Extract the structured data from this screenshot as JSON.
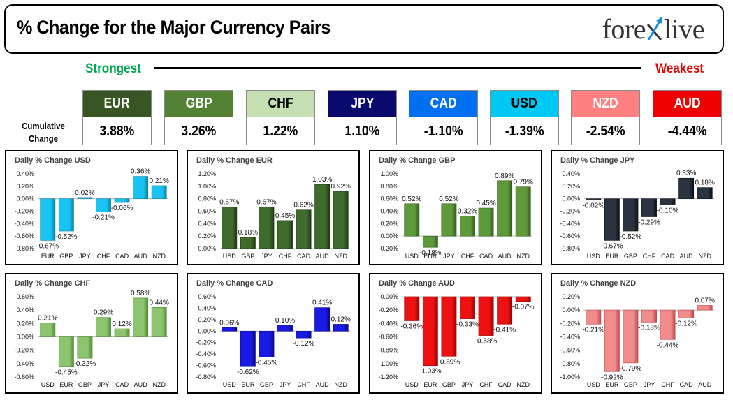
{
  "header": {
    "title": "% Change for the Major Currency Pairs",
    "logo_text_left": "fore",
    "logo_text_right": "live"
  },
  "ranking": {
    "strongest_label": "Strongest",
    "weakest_label": "Weakest",
    "cumulative_label_line1": "Cumulative",
    "cumulative_label_line2": "Change"
  },
  "currencies": [
    {
      "code": "EUR",
      "value": "3.88%",
      "color": "#375623",
      "text_color": "#ffffff"
    },
    {
      "code": "GBP",
      "value": "3.26%",
      "color": "#548235",
      "text_color": "#ffffff"
    },
    {
      "code": "CHF",
      "value": "1.22%",
      "color": "#c6e0b4",
      "text_color": "#000000"
    },
    {
      "code": "JPY",
      "value": "1.10%",
      "color": "#0a0a6e",
      "text_color": "#ffffff"
    },
    {
      "code": "CAD",
      "value": "-1.10%",
      "color": "#0070f0",
      "text_color": "#ffffff"
    },
    {
      "code": "USD",
      "value": "-1.39%",
      "color": "#00c8f5",
      "text_color": "#000000"
    },
    {
      "code": "NZD",
      "value": "-2.54%",
      "color": "#ff8080",
      "text_color": "#ffffff"
    },
    {
      "code": "AUD",
      "value": "-4.44%",
      "color": "#ee0000",
      "text_color": "#ffffff"
    }
  ],
  "chart_data": [
    {
      "type": "bar",
      "title": "Daily % Change USD",
      "categories": [
        "EUR",
        "GBP",
        "JPY",
        "CHF",
        "CAD",
        "AUD",
        "NZD"
      ],
      "values": [
        -0.67,
        -0.52,
        0.02,
        -0.21,
        -0.06,
        0.36,
        0.21
      ],
      "labels": [
        "-0.67%",
        "-0.52%",
        "0.02%",
        "-0.21%",
        "-0.06%",
        "0.36%",
        "0.21%"
      ],
      "ylim": [
        -0.8,
        0.4
      ],
      "yticks": [
        0.4,
        0.2,
        0.0,
        -0.2,
        -0.4,
        -0.6,
        -0.8
      ],
      "ytick_labels": [
        "0.40%",
        "0.20%",
        "0.00%",
        "-0.20%",
        "-0.40%",
        "-0.60%",
        "-0.80%"
      ],
      "color": "#19c3f3",
      "color_dark": "#0e7fa0"
    },
    {
      "type": "bar",
      "title": "Daily % Change EUR",
      "categories": [
        "USD",
        "GBP",
        "JPY",
        "CHF",
        "CAD",
        "AUD",
        "NZD"
      ],
      "values": [
        0.67,
        0.18,
        0.67,
        0.45,
        0.62,
        1.03,
        0.92
      ],
      "labels": [
        "0.67%",
        "0.18%",
        "0.67%",
        "0.45%",
        "0.62%",
        "1.03%",
        "0.92%"
      ],
      "ylim": [
        0.0,
        1.2
      ],
      "yticks": [
        1.2,
        1.0,
        0.8,
        0.6,
        0.4,
        0.2,
        0.0
      ],
      "ytick_labels": [
        "1.20%",
        "1.00%",
        "0.80%",
        "0.60%",
        "0.40%",
        "0.20%",
        "0.00%"
      ],
      "color": "#3f6b2c",
      "color_dark": "#1f3a14"
    },
    {
      "type": "bar",
      "title": "Daily % Change GBP",
      "categories": [
        "USD",
        "EUR",
        "JPY",
        "CHF",
        "CAD",
        "AUD",
        "NZD"
      ],
      "values": [
        0.52,
        -0.18,
        0.52,
        0.32,
        0.45,
        0.89,
        0.79
      ],
      "labels": [
        "0.52%",
        "-0.18%",
        "0.52%",
        "0.32%",
        "0.45%",
        "0.89%",
        "0.79%"
      ],
      "ylim": [
        -0.2,
        1.0
      ],
      "yticks": [
        1.0,
        0.8,
        0.6,
        0.4,
        0.2,
        0.0,
        -0.2
      ],
      "ytick_labels": [
        "1.00%",
        "0.80%",
        "0.60%",
        "0.40%",
        "0.20%",
        "0.00%",
        "-0.20%"
      ],
      "color": "#5f9a3a",
      "color_dark": "#335a1c"
    },
    {
      "type": "bar",
      "title": "Daily % Change JPY",
      "categories": [
        "USD",
        "EUR",
        "GBP",
        "CHF",
        "CAD",
        "AUD",
        "NZD"
      ],
      "values": [
        -0.02,
        -0.67,
        -0.52,
        -0.29,
        -0.1,
        0.33,
        0.18
      ],
      "labels": [
        "-0.02%",
        "-0.67%",
        "-0.52%",
        "-0.29%",
        "-0.10%",
        "0.33%",
        "0.18%"
      ],
      "ylim": [
        -0.8,
        0.4
      ],
      "yticks": [
        0.4,
        0.2,
        0.0,
        -0.2,
        -0.4,
        -0.6,
        -0.8
      ],
      "ytick_labels": [
        "0.40%",
        "0.20%",
        "0.00%",
        "-0.20%",
        "-0.40%",
        "-0.60%",
        "-0.80%"
      ],
      "color": "#2a3340",
      "color_dark": "#0d1118"
    },
    {
      "type": "bar",
      "title": "Daily % Change CHF",
      "categories": [
        "USD",
        "EUR",
        "GBP",
        "JPY",
        "CAD",
        "AUD",
        "NZD"
      ],
      "values": [
        0.21,
        -0.45,
        -0.32,
        0.29,
        0.12,
        0.58,
        0.44
      ],
      "labels": [
        "0.21%",
        "-0.45%",
        "-0.32%",
        "0.29%",
        "0.12%",
        "0.58%",
        "0.44%"
      ],
      "ylim": [
        -0.6,
        0.6
      ],
      "yticks": [
        0.6,
        0.4,
        0.2,
        0.0,
        -0.2,
        -0.4,
        -0.6
      ],
      "ytick_labels": [
        "0.60%",
        "0.40%",
        "0.20%",
        "0.00%",
        "-0.20%",
        "-0.40%",
        "-0.60%"
      ],
      "color": "#8cc56e",
      "color_dark": "#4f8a35"
    },
    {
      "type": "bar",
      "title": "Daily % Change CAD",
      "categories": [
        "USD",
        "EUR",
        "GBP",
        "JPY",
        "CHF",
        "AUD",
        "NZD"
      ],
      "values": [
        0.06,
        -0.62,
        -0.45,
        0.1,
        -0.12,
        0.41,
        0.12
      ],
      "labels": [
        "0.06%",
        "-0.62%",
        "-0.45%",
        "0.10%",
        "-0.12%",
        "0.41%",
        "0.12%"
      ],
      "ylim": [
        -0.8,
        0.6
      ],
      "yticks": [
        0.6,
        0.4,
        0.2,
        0.0,
        -0.2,
        -0.4,
        -0.6,
        -0.8
      ],
      "ytick_labels": [
        "0.60%",
        "0.40%",
        "0.20%",
        "0.00%",
        "-0.20%",
        "-0.40%",
        "-0.60%",
        "-0.80%"
      ],
      "color": "#1a1ae6",
      "color_dark": "#0a0a80"
    },
    {
      "type": "bar",
      "title": "Daily % Change AUD",
      "categories": [
        "USD",
        "EUR",
        "GBP",
        "JPY",
        "CHF",
        "CAD",
        "NZD"
      ],
      "values": [
        -0.36,
        -1.03,
        -0.89,
        -0.33,
        -0.58,
        -0.41,
        -0.07
      ],
      "labels": [
        "-0.36%",
        "-1.03%",
        "-0.89%",
        "-0.33%",
        "-0.58%",
        "-0.41%",
        "-0.07%"
      ],
      "ylim": [
        -1.2,
        0.0
      ],
      "yticks": [
        0.0,
        -0.2,
        -0.4,
        -0.6,
        -0.8,
        -1.0,
        -1.2
      ],
      "ytick_labels": [
        "0.00%",
        "-0.20%",
        "-0.40%",
        "-0.60%",
        "-0.80%",
        "-1.00%",
        "-1.20%"
      ],
      "color": "#ee1111",
      "color_dark": "#9a0000"
    },
    {
      "type": "bar",
      "title": "Daily % Change NZD",
      "categories": [
        "USD",
        "EUR",
        "GBP",
        "JPY",
        "CHF",
        "CAD",
        "AUD"
      ],
      "values": [
        -0.21,
        -0.92,
        -0.79,
        -0.18,
        -0.44,
        -0.12,
        0.07
      ],
      "labels": [
        "-0.21%",
        "-0.92%",
        "-0.79%",
        "-0.18%",
        "-0.44%",
        "-0.12%",
        "0.07%"
      ],
      "ylim": [
        -1.0,
        0.2
      ],
      "yticks": [
        0.2,
        0.0,
        -0.2,
        -0.4,
        -0.6,
        -0.8,
        -1.0
      ],
      "ytick_labels": [
        "0.20%",
        "0.00%",
        "-0.20%",
        "-0.40%",
        "-0.60%",
        "-0.80%",
        "-1.00%"
      ],
      "color": "#f08c8c",
      "color_dark": "#c04a4a"
    }
  ]
}
